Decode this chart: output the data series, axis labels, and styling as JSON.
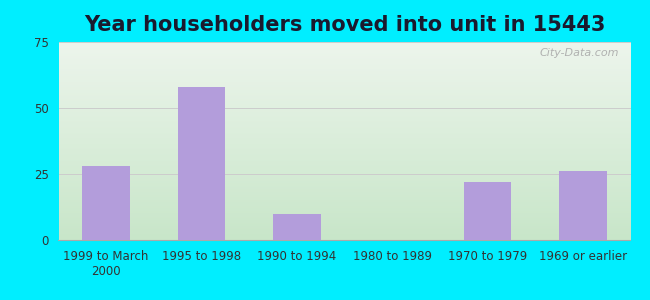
{
  "title": "Year householders moved into unit in 15443",
  "categories": [
    "1999 to March\n2000",
    "1995 to 1998",
    "1990 to 1994",
    "1980 to 1989",
    "1970 to 1979",
    "1969 or earlier"
  ],
  "values": [
    28,
    58,
    10,
    0,
    22,
    26
  ],
  "bar_color": "#b39ddb",
  "background_outer": "#00eeff",
  "ylim": [
    0,
    75
  ],
  "yticks": [
    0,
    25,
    50,
    75
  ],
  "title_fontsize": 15,
  "title_color": "#1a1a2e",
  "tick_fontsize": 8.5,
  "watermark": "City-Data.com",
  "grad_top": "#edf5ec",
  "grad_bottom": "#d4edda"
}
